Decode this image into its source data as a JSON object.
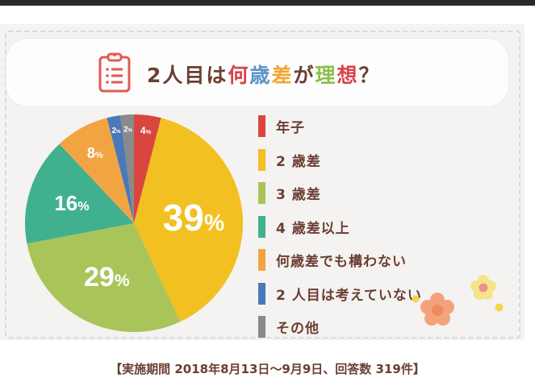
{
  "header": {
    "icon": "clipboard-list-icon",
    "title_parts": [
      {
        "text": "2人目は",
        "color": "#6b3e32"
      },
      {
        "text": "何",
        "color": "#d9434a"
      },
      {
        "text": "歳",
        "color": "#5b93c6"
      },
      {
        "text": "差",
        "color": "#f0a632"
      },
      {
        "text": "が",
        "color": "#6b3e32"
      },
      {
        "text": "理",
        "color": "#8cbf4f"
      },
      {
        "text": "想",
        "color": "#d9434a"
      },
      {
        "text": "？",
        "color": "#6b3e32"
      }
    ]
  },
  "chart_data": {
    "type": "pie",
    "title": "2人目は何歳差が理想？",
    "categories": [
      "年子",
      "2 歳差",
      "3 歳差",
      "4 歳差以上",
      "何歳差でも構わない",
      "2 人目は考えていない",
      "その他"
    ],
    "values": [
      4,
      39,
      29,
      16,
      8,
      2,
      2
    ],
    "unit": "%",
    "colors": [
      "#d9463f",
      "#f2c020",
      "#a9c55a",
      "#41b08e",
      "#f2a443",
      "#4a78b8",
      "#8a8a8a"
    ],
    "data_labels": [
      "4%",
      "39%",
      "29%",
      "16%",
      "8%",
      "2%",
      "2%"
    ],
    "start_angle": "12 o'clock, clockwise",
    "legend_position": "right"
  },
  "legend": {
    "items": [
      {
        "label": "年子",
        "color": "#d9463f"
      },
      {
        "label": "2 歳差",
        "color": "#f2c020"
      },
      {
        "label": "3 歳差",
        "color": "#a9c55a"
      },
      {
        "label": "4 歳差以上",
        "color": "#41b08e"
      },
      {
        "label": "何歳差でも構わない",
        "color": "#f2a443"
      },
      {
        "label": "2 人目は考えていない",
        "color": "#4a78b8"
      },
      {
        "label": "その他",
        "color": "#8a8a8a"
      }
    ]
  },
  "footer": {
    "text": "【実施期間  2018年8月13日～9月9日、回答数  319件】"
  }
}
